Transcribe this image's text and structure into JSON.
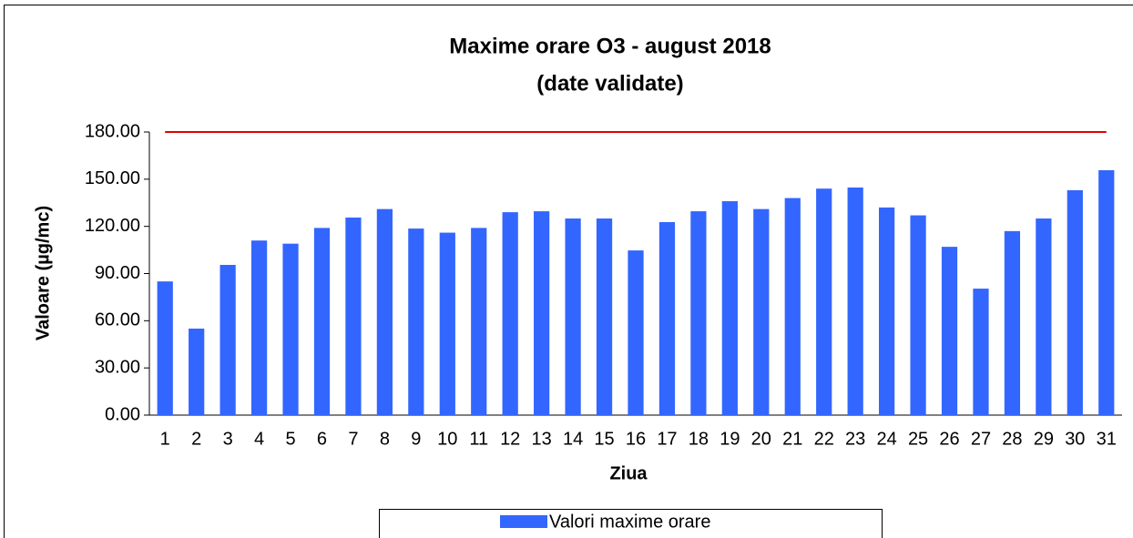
{
  "chart_data": {
    "type": "bar",
    "title": "Maxime orare O3 -  august 2018",
    "subtitle": "(date validate)",
    "x_label": "Ziua",
    "y_label": "Valoare (µg/mc)",
    "categories": [
      "1",
      "2",
      "3",
      "4",
      "5",
      "6",
      "7",
      "8",
      "9",
      "10",
      "11",
      "12",
      "13",
      "14",
      "15",
      "16",
      "17",
      "18",
      "19",
      "20",
      "21",
      "22",
      "23",
      "24",
      "25",
      "26",
      "27",
      "28",
      "29",
      "30",
      "31"
    ],
    "series": [
      {
        "name": "Valori maxime orare",
        "color": "#3366ff",
        "values": [
          85,
          55,
          95.5,
          111,
          109,
          119,
          125.6,
          131,
          118.6,
          116,
          119,
          129,
          129.6,
          125,
          125,
          104.7,
          122.7,
          129.6,
          136,
          131,
          138,
          144,
          144.7,
          132,
          127,
          107,
          80.4,
          117,
          125,
          143,
          155.7
        ]
      }
    ],
    "limit_line": {
      "value": 180,
      "color": "#e00000"
    },
    "ylim": [
      0,
      180
    ],
    "yticks": [
      {
        "value": 0,
        "label": "0.00"
      },
      {
        "value": 30,
        "label": "30.00"
      },
      {
        "value": 60,
        "label": "60.00"
      },
      {
        "value": 90,
        "label": "90.00"
      },
      {
        "value": 120,
        "label": "120.00"
      },
      {
        "value": 150,
        "label": "150.00"
      },
      {
        "value": 180,
        "label": "180.00"
      }
    ],
    "grid": false,
    "legend": "bottom"
  }
}
